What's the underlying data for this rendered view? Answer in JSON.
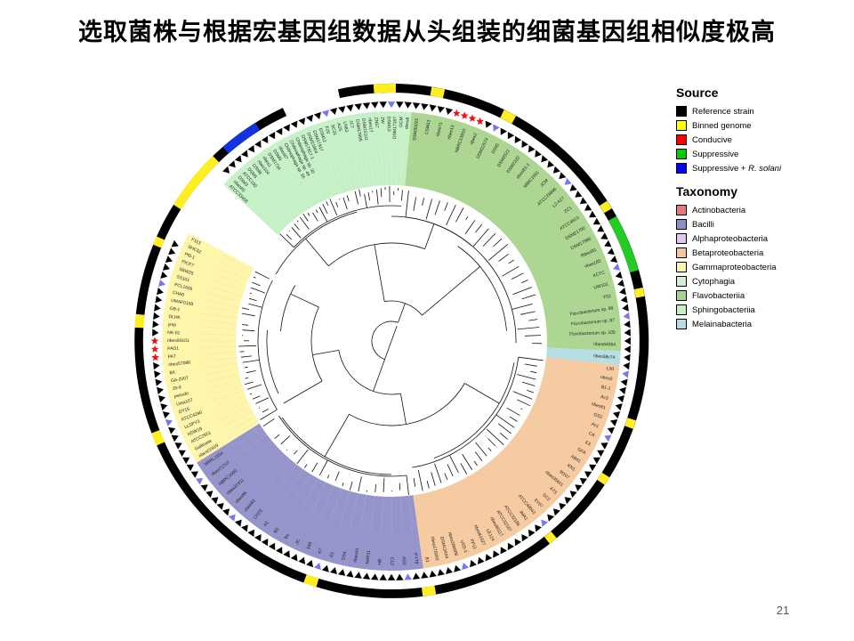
{
  "slide": {
    "title": "选取菌株与根据宏基因组数据从头组装的细菌基因组相似度极高",
    "page_number": "21"
  },
  "legend": {
    "source_heading": "Source",
    "source_items": [
      {
        "label": "Reference strain",
        "color": "#000000"
      },
      {
        "label": "Binned genome",
        "color": "#ffff00"
      },
      {
        "label": "Conducive",
        "color": "#ff0000"
      },
      {
        "label": "Suppressive",
        "color": "#00cc00"
      },
      {
        "label": "Suppressive + R. solani",
        "color": "#0000ff"
      }
    ],
    "taxonomy_heading": "Taxonomy",
    "taxonomy_items": [
      {
        "label": "Actinobacteria",
        "color": "#e8787a"
      },
      {
        "label": "Bacilli",
        "color": "#8f8fc8"
      },
      {
        "label": "Alphaproteobacteria",
        "color": "#e0c8ec"
      },
      {
        "label": "Betaproteobacteria",
        "color": "#f5c89c"
      },
      {
        "label": "Gammaproteobacteria",
        "color": "#fff5a8"
      },
      {
        "label": "Cytophagia",
        "color": "#d4ecd4"
      },
      {
        "label": "Flavobacteriia",
        "color": "#a8d48c"
      },
      {
        "label": "Sphingobacteriia",
        "color": "#c4f0c4"
      },
      {
        "label": "Melainabacteria",
        "color": "#b4dce4"
      }
    ]
  },
  "figure": {
    "marker_colors": {
      "reference": "#000000",
      "binned": "#7777ee",
      "star": "#ee1111",
      "ring_black": "#000000",
      "ring_yellow": "#ffee22",
      "ring_green": "#22cc22",
      "ring_blue": "#1133dd"
    },
    "leaf_labels": {
      "gamma": [
        "F113",
        "SHC52",
        "Pf0-1",
        "PICF7",
        "SBW25",
        "SS101",
        "PCL1606",
        "CHA0",
        "UMAF0158",
        "GB-1",
        "DLHK",
        "ymp",
        "NK-01",
        "ribes93101",
        "PAO1",
        "PA7",
        "ribes57086",
        "B6",
        "GA-2007",
        "JS-6",
        "pseudo",
        "Ueta107",
        "DY15",
        "ATCC4290",
        "LLSPY3",
        "NSW18",
        "ATCC2551",
        "Gallinase",
        "ribes01919"
      ],
      "bacilli": [
        "NRRL1554",
        "ribes71707",
        "NBRC1000",
        "ribes31911",
        "ribes86",
        "ribes83",
        "CH23",
        "A1",
        "B2",
        "Bs",
        "JC",
        "168",
        "K7",
        "E1",
        "DS4",
        "ribes41",
        "NAR11",
        "HB",
        "C12",
        "AS2",
        "PY79"
      ],
      "beta": [
        "B1",
        "ribes175062",
        "DSM12444",
        "ribes26b009",
        "USS-1",
        "PP11",
        "ribes61627",
        "LE124",
        "ribes86117",
        "ATCC32187",
        "ATCC32188",
        "JMA1",
        "ATCC48042",
        "SY67",
        "SC2",
        "A73",
        "ribes35601",
        "M107",
        "KN1",
        "AB41",
        "GFA",
        "E3",
        "CA",
        "Ac1",
        "GS2",
        "ribes81",
        "Ac3",
        "B1-1",
        "ribes0",
        "L00"
      ],
      "blue": [
        "ribes58c74"
      ],
      "flavo": [
        "ribes64564",
        "Flavobacterium sp. 105",
        "Flavobacterium sp. 87",
        "Flavobacterium sp. 98",
        "F52",
        "UW101",
        "KCTC",
        "ribes185",
        "Ribes81",
        "DSM17896",
        "DSM21700",
        "ATCC4813",
        "ZC1",
        "L2 A17",
        "ATCC29896",
        "JCM",
        "MBIC1001",
        "ribes81-1",
        "DSM2332",
        "DSM2522",
        "DS92",
        "DSM22574",
        "ribes2",
        "NBRC13910",
        "ribes13",
        "ribes71",
        "CSM13",
        "DSM30022"
      ],
      "sphingo": [
        "ribes8",
        "GCM",
        "DSM17187",
        "DSM13",
        "ZW",
        "ZN57",
        "ribes17",
        "DSM15101",
        "DSM17895",
        "JC7",
        "LN83",
        "A2S",
        "SC31",
        "F20",
        "DSM12",
        "DSM17917",
        "DSM21804",
        "DSM17917-1",
        "Chitinophaga sp. 30",
        "Chitinophaga sp. 49",
        "Chitinophaga sp. 56",
        "ribes87",
        "DSM9",
        "DSM1734",
        "ribes1",
        "ribes104",
        "DSM8",
        "DSM5",
        "ATCC100",
        "DSM3",
        "ribes65",
        "ATCC33406"
      ]
    }
  }
}
